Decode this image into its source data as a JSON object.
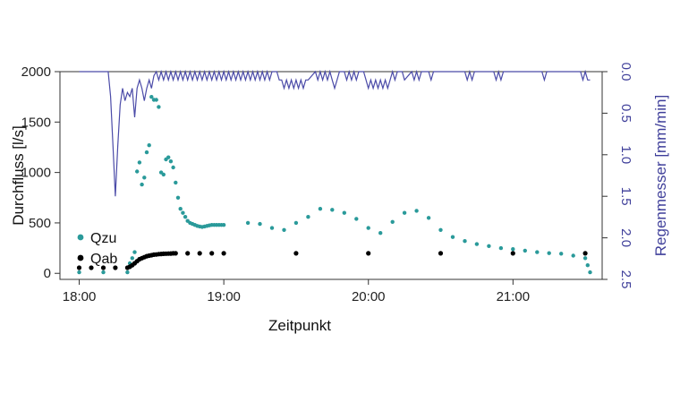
{
  "chart_data": {
    "type": "scatter",
    "xlabel": "Zeitpunkt",
    "ylabel": "Durchfluss [l/s]",
    "y2label": "Regenmesser [mm/min]",
    "x_range": [
      "17:52",
      "21:37"
    ],
    "xticks": [
      "18:00",
      "19:00",
      "20:00",
      "21:00"
    ],
    "ylim": [
      -60,
      2000
    ],
    "yticks": [
      0,
      500,
      1000,
      1500,
      2000
    ],
    "y2lim": [
      0,
      2.5
    ],
    "y2_reversed": true,
    "y2ticks": [
      "0.0",
      "0.5",
      "1.0",
      "1.5",
      "2.0",
      "2.5"
    ],
    "legend_position": "bottom-left",
    "colors": {
      "Qzu": "#2a9a9a",
      "Qab": "#000000",
      "rain": "#4b4ba8"
    },
    "series": [
      {
        "name": "Qzu",
        "kind": "points",
        "x": [
          "18:00",
          "18:10",
          "18:20",
          "18:21",
          "18:22",
          "18:23",
          "18:24",
          "18:25",
          "18:26",
          "18:27",
          "18:28",
          "18:29",
          "18:30",
          "18:31",
          "18:32",
          "18:33",
          "18:34",
          "18:35",
          "18:36",
          "18:37",
          "18:38",
          "18:39",
          "18:40",
          "18:41",
          "18:42",
          "18:43",
          "18:44",
          "18:45",
          "18:46",
          "18:47",
          "18:48",
          "18:49",
          "18:50",
          "18:51",
          "18:52",
          "18:53",
          "18:54",
          "18:55",
          "18:56",
          "18:57",
          "18:58",
          "18:59",
          "19:00",
          "19:10",
          "19:15",
          "19:20",
          "19:25",
          "19:30",
          "19:35",
          "19:40",
          "19:45",
          "19:50",
          "19:55",
          "20:00",
          "20:05",
          "20:10",
          "20:15",
          "20:20",
          "20:25",
          "20:30",
          "20:35",
          "20:40",
          "20:45",
          "20:50",
          "20:55",
          "21:00",
          "21:05",
          "21:10",
          "21:15",
          "21:20",
          "21:25",
          "21:30",
          "21:31",
          "21:32"
        ],
        "y": [
          10,
          10,
          10,
          100,
          150,
          210,
          1010,
          1100,
          880,
          950,
          1200,
          1270,
          1750,
          1720,
          1720,
          1650,
          1000,
          980,
          1130,
          1150,
          1110,
          1050,
          900,
          750,
          640,
          600,
          560,
          520,
          500,
          490,
          480,
          470,
          465,
          460,
          465,
          470,
          475,
          480,
          480,
          480,
          480,
          480,
          480,
          500,
          490,
          450,
          430,
          500,
          560,
          640,
          630,
          600,
          540,
          450,
          400,
          510,
          600,
          620,
          550,
          430,
          360,
          320,
          290,
          270,
          250,
          240,
          225,
          210,
          200,
          195,
          175,
          150,
          80,
          10
        ]
      },
      {
        "name": "Qab",
        "kind": "points",
        "x": [
          "18:00",
          "18:05",
          "18:10",
          "18:15",
          "18:20",
          "18:21",
          "18:22",
          "18:23",
          "18:24",
          "18:25",
          "18:26",
          "18:27",
          "18:28",
          "18:29",
          "18:30",
          "18:31",
          "18:32",
          "18:33",
          "18:34",
          "18:35",
          "18:36",
          "18:37",
          "18:38",
          "18:39",
          "18:40",
          "18:45",
          "18:50",
          "18:55",
          "19:00",
          "19:30",
          "20:00",
          "20:30",
          "21:00",
          "21:30"
        ],
        "y": [
          55,
          55,
          55,
          55,
          55,
          65,
          80,
          100,
          120,
          140,
          150,
          160,
          170,
          175,
          180,
          185,
          187,
          190,
          192,
          194,
          195,
          196,
          197,
          198,
          198,
          198,
          198,
          198,
          198,
          198,
          198,
          198,
          198,
          198
        ]
      },
      {
        "name": "Regenmesser",
        "kind": "line",
        "x": [
          "18:00",
          "18:12",
          "18:13",
          "18:14",
          "18:15",
          "18:16",
          "18:17",
          "18:18",
          "18:19",
          "18:20",
          "18:21",
          "18:22",
          "18:23",
          "18:24",
          "18:25",
          "18:26",
          "18:27",
          "18:28",
          "18:29",
          "18:30",
          "18:31",
          "18:32",
          "18:33",
          "18:34",
          "18:35",
          "18:36",
          "18:37",
          "18:38",
          "18:39",
          "18:40",
          "18:41",
          "18:42",
          "18:43",
          "18:44",
          "18:45",
          "18:46",
          "18:47",
          "18:48",
          "18:49",
          "18:50",
          "18:51",
          "18:52",
          "18:53",
          "18:54",
          "18:55",
          "18:56",
          "18:57",
          "18:58",
          "18:59",
          "19:00",
          "19:01",
          "19:02",
          "19:03",
          "19:04",
          "19:05",
          "19:06",
          "19:07",
          "19:08",
          "19:09",
          "19:10",
          "19:11",
          "19:12",
          "19:13",
          "19:14",
          "19:15",
          "19:16",
          "19:17",
          "19:18",
          "19:19",
          "19:20",
          "19:22",
          "19:23",
          "19:24",
          "19:25",
          "19:26",
          "19:27",
          "19:28",
          "19:29",
          "19:30",
          "19:31",
          "19:32",
          "19:33",
          "19:34",
          "19:35",
          "19:38",
          "19:39",
          "19:40",
          "19:41",
          "19:42",
          "19:43",
          "19:44",
          "19:45",
          "19:46",
          "19:47",
          "19:48",
          "19:50",
          "19:51",
          "19:52",
          "19:53",
          "19:54",
          "19:55",
          "19:56",
          "19:58",
          "19:59",
          "20:00",
          "20:01",
          "20:02",
          "20:03",
          "20:04",
          "20:05",
          "20:06",
          "20:07",
          "20:08",
          "20:09",
          "20:10",
          "20:11",
          "20:12",
          "20:14",
          "20:15",
          "20:18",
          "20:19",
          "20:20",
          "20:21",
          "20:22",
          "20:25",
          "20:26",
          "20:27",
          "20:28",
          "20:40",
          "20:41",
          "20:42",
          "20:43",
          "20:44",
          "20:45",
          "20:52",
          "20:53",
          "20:54",
          "20:55",
          "20:56",
          "21:00",
          "21:12",
          "21:13",
          "21:14",
          "21:28",
          "21:29",
          "21:30",
          "21:31",
          "21:32"
        ],
        "y": [
          0,
          0,
          0.3,
          0.9,
          1.5,
          0.9,
          0.4,
          0.2,
          0.35,
          0.25,
          0.3,
          0.2,
          0.55,
          0.2,
          0.1,
          0.2,
          0.35,
          0.2,
          0.1,
          0.2,
          0.05,
          0,
          0.1,
          0,
          0.1,
          0,
          0.1,
          0,
          0.1,
          0,
          0.1,
          0,
          0.1,
          0,
          0.1,
          0,
          0.1,
          0,
          0.1,
          0,
          0.1,
          0,
          0.1,
          0,
          0.1,
          0,
          0.1,
          0,
          0.1,
          0,
          0.1,
          0,
          0.1,
          0,
          0.1,
          0,
          0.1,
          0,
          0.1,
          0,
          0.1,
          0,
          0.1,
          0,
          0.1,
          0,
          0.1,
          0,
          0.1,
          0,
          0,
          0.1,
          0.1,
          0.2,
          0.1,
          0.2,
          0.1,
          0.2,
          0.1,
          0.2,
          0.1,
          0.2,
          0.1,
          0.1,
          0,
          0.1,
          0,
          0.1,
          0,
          0.1,
          0,
          0.1,
          0.2,
          0.1,
          0,
          0,
          0.1,
          0,
          0.1,
          0,
          0.1,
          0,
          0,
          0.1,
          0.2,
          0.1,
          0.2,
          0.1,
          0.2,
          0.1,
          0.2,
          0.1,
          0.2,
          0.1,
          0,
          0.1,
          0,
          0,
          0.1,
          0,
          0.1,
          0,
          0.1,
          0,
          0,
          0.1,
          0,
          0,
          0,
          0.1,
          0,
          0.1,
          0,
          0,
          0,
          0.1,
          0,
          0.1,
          0,
          0,
          0,
          0.1,
          0,
          0,
          0.1,
          0,
          0.1,
          0.1
        ]
      }
    ]
  }
}
